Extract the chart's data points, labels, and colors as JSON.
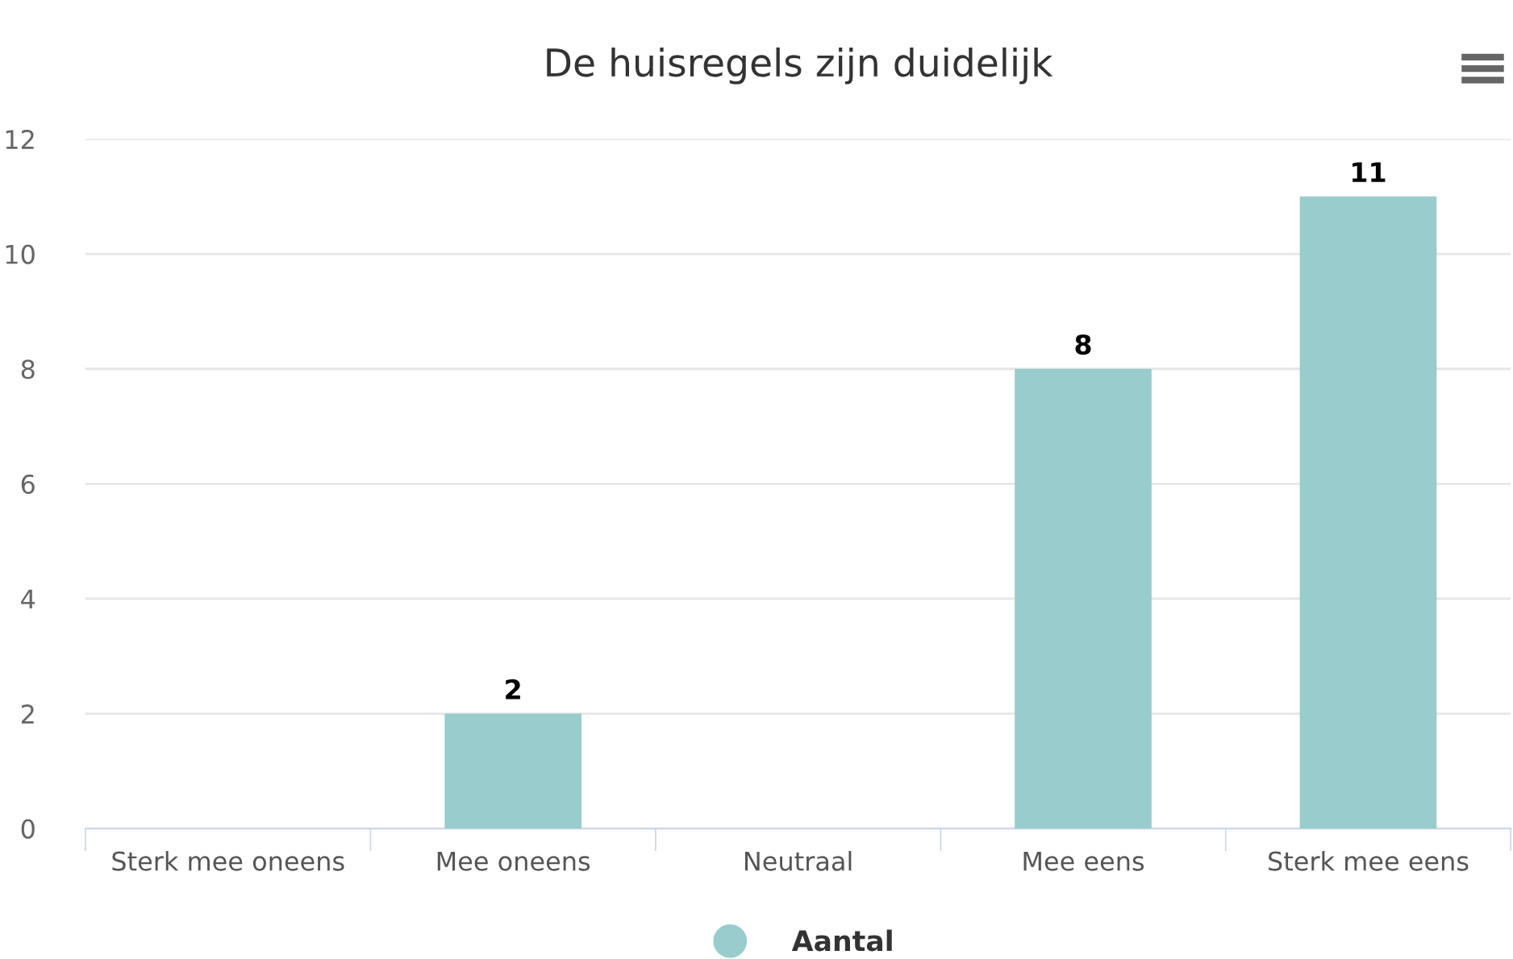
{
  "chart_data": {
    "type": "bar",
    "title": "De huisregels zijn duidelijk",
    "categories": [
      "Sterk mee oneens",
      "Mee oneens",
      "Neutraal",
      "Mee eens",
      "Sterk mee eens"
    ],
    "series": [
      {
        "name": "Aantal",
        "color": "#99cccc",
        "values": [
          0,
          2,
          0,
          8,
          11
        ],
        "value_labels": [
          null,
          "2",
          null,
          "8",
          "11"
        ]
      }
    ],
    "ylim": [
      0,
      12
    ],
    "yticks": [
      0,
      2,
      4,
      6,
      8,
      10,
      12
    ],
    "grid": "y",
    "legend": "bottom",
    "marker": "circle"
  }
}
